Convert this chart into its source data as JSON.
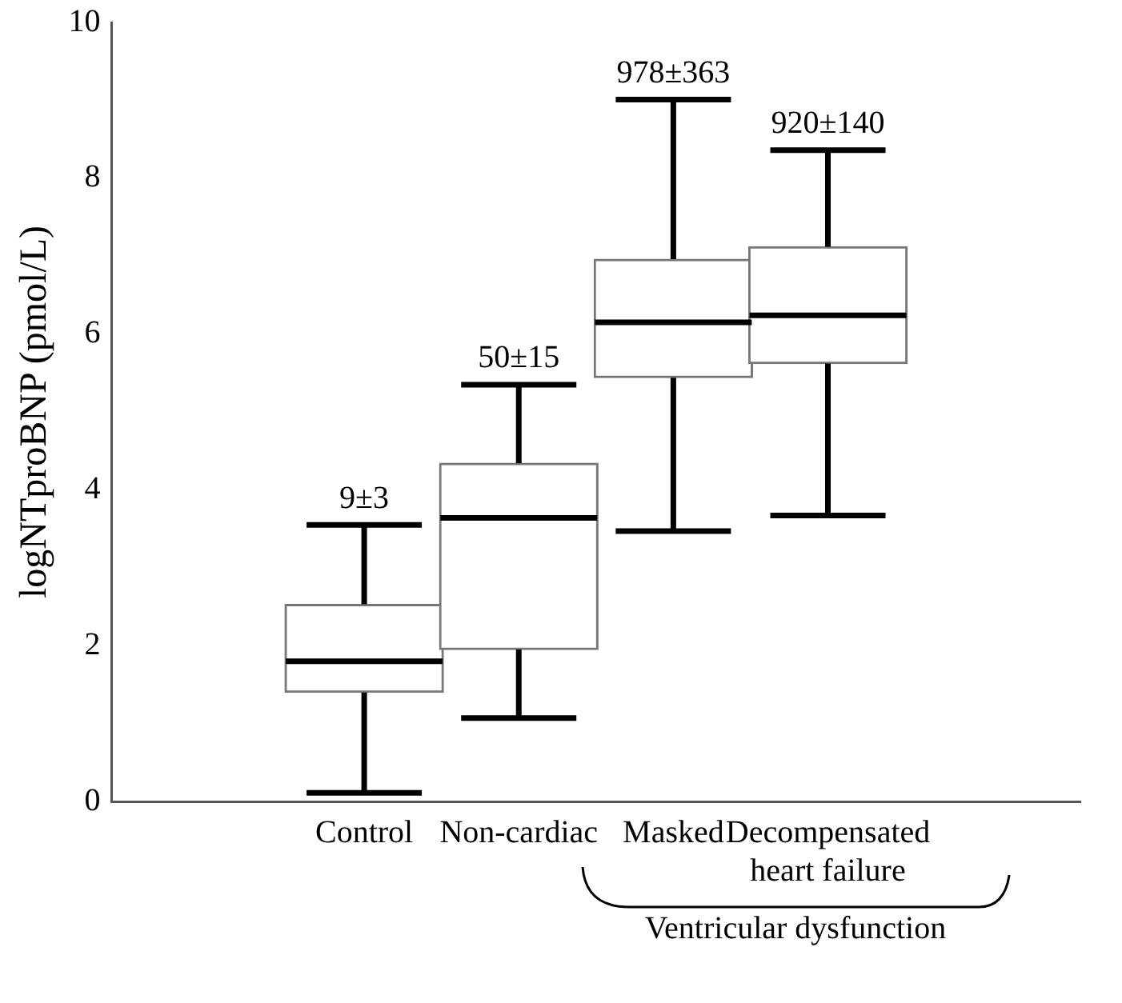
{
  "chart_data": {
    "type": "box",
    "ylabel": "logNTproBNP (pmol/L)",
    "categories": [
      "Control",
      "Non-cardiac",
      "Masked",
      "Decompensated heart failure"
    ],
    "boxes": [
      {
        "low": 0.11,
        "q1": 1.4,
        "median": 1.8,
        "q3": 2.53,
        "high": 3.55
      },
      {
        "low": 1.07,
        "q1": 1.95,
        "median": 3.64,
        "q3": 4.34,
        "high": 5.35
      },
      {
        "low": 3.47,
        "q1": 5.44,
        "median": 6.15,
        "q3": 6.96,
        "high": 9.01
      },
      {
        "low": 3.67,
        "q1": 5.62,
        "median": 6.24,
        "q3": 7.12,
        "high": 8.36
      }
    ],
    "ylim": [
      0,
      10
    ],
    "yticks": [
      0,
      2,
      4,
      6,
      8,
      10
    ],
    "grid": false,
    "legend": false,
    "annotations": [
      {
        "text": "9±3",
        "x": "Control",
        "y": 3.55
      },
      {
        "text": "50±15",
        "x": "Non-cardiac",
        "y": 5.35
      },
      {
        "text": "978±363",
        "x": "Masked",
        "y": 9.01
      },
      {
        "text": "920±140",
        "x": "Decompensated heart failure",
        "y": 8.36
      },
      "Ventricular dysfunction"
    ]
  }
}
